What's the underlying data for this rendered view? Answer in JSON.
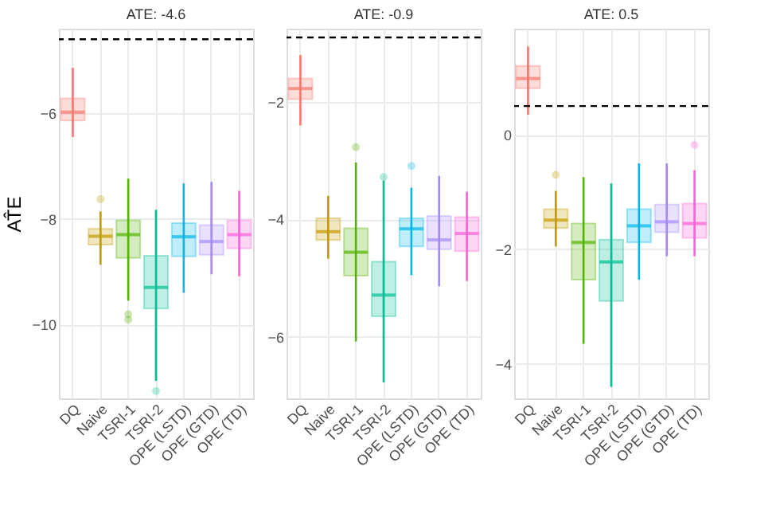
{
  "chart_data": [
    {
      "type": "box",
      "title": "ATE: -4.6",
      "ylabel": "AT̂E",
      "categories": [
        "DQ",
        "Naive",
        "TSRI-1",
        "TSRI-2",
        "OPE (LSTD)",
        "OPE (GTD)",
        "OPE (TD)"
      ],
      "colors": [
        "#f8766d",
        "#c49a00",
        "#53b400",
        "#00c094",
        "#00b6eb",
        "#a58aff",
        "#fb61d7"
      ],
      "ylim": [
        -11.4,
        -4.4
      ],
      "yticks": [
        -10,
        -8,
        -6
      ],
      "grid": true,
      "ref_lines": [
        {
          "axis": "y",
          "value": -4.6,
          "line_style": "dashed"
        }
      ],
      "boxes": [
        {
          "low": -6.45,
          "q1": -6.14,
          "median": -5.98,
          "q3": -5.72,
          "high": -5.14
        },
        {
          "low": -8.87,
          "q1": -8.49,
          "median": -8.33,
          "q3": -8.19,
          "high": -7.86,
          "outliers": [
            -7.63
          ]
        },
        {
          "low": -9.55,
          "q1": -8.74,
          "median": -8.3,
          "q3": -8.03,
          "high": -7.24,
          "outliers": [
            -9.81,
            -9.91
          ]
        },
        {
          "low": -11.07,
          "q1": -9.7,
          "median": -9.3,
          "q3": -8.7,
          "high": -7.83,
          "outliers": [
            -11.26
          ]
        },
        {
          "low": -9.4,
          "q1": -8.71,
          "median": -8.34,
          "q3": -8.08,
          "high": -7.33
        },
        {
          "low": -9.05,
          "q1": -8.68,
          "median": -8.43,
          "q3": -8.12,
          "high": -7.3
        },
        {
          "low": -9.09,
          "q1": -8.56,
          "median": -8.3,
          "q3": -8.03,
          "high": -7.47
        }
      ]
    },
    {
      "type": "box",
      "title": "ATE: -0.9",
      "categories": [
        "DQ",
        "Naive",
        "TSRI-1",
        "TSRI-2",
        "OPE (LSTD)",
        "OPE (GTD)",
        "OPE (TD)"
      ],
      "colors": [
        "#f8766d",
        "#c49a00",
        "#53b400",
        "#00c094",
        "#00b6eb",
        "#a58aff",
        "#fb61d7"
      ],
      "ylim": [
        -7.05,
        -0.75
      ],
      "yticks": [
        -6,
        -4,
        -2
      ],
      "grid": true,
      "ref_lines": [
        {
          "axis": "y",
          "value": -0.9,
          "line_style": "dashed"
        }
      ],
      "boxes": [
        {
          "low": -2.4,
          "q1": -1.95,
          "median": -1.77,
          "q3": -1.6,
          "high": -1.2
        },
        {
          "low": -4.67,
          "q1": -4.35,
          "median": -4.21,
          "q3": -3.98,
          "high": -3.6
        },
        {
          "low": -6.08,
          "q1": -4.96,
          "median": -4.56,
          "q3": -4.15,
          "high": -3.03,
          "outliers": [
            -2.77
          ]
        },
        {
          "low": -6.78,
          "q1": -5.65,
          "median": -5.29,
          "q3": -4.72,
          "high": -3.34,
          "outliers": [
            -3.28
          ]
        },
        {
          "low": -4.95,
          "q1": -4.46,
          "median": -4.16,
          "q3": -3.98,
          "high": -3.46,
          "outliers": [
            -3.09
          ]
        },
        {
          "low": -5.14,
          "q1": -4.51,
          "median": -4.35,
          "q3": -3.94,
          "high": -3.26
        },
        {
          "low": -5.05,
          "q1": -4.54,
          "median": -4.24,
          "q3": -3.96,
          "high": -3.53
        }
      ]
    },
    {
      "type": "box",
      "title": "ATE: 0.5",
      "categories": [
        "DQ",
        "Naive",
        "TSRI-1",
        "TSRI-2",
        "OPE (LSTD)",
        "OPE (GTD)",
        "OPE (TD)"
      ],
      "colors": [
        "#f8766d",
        "#c49a00",
        "#53b400",
        "#00c094",
        "#00b6eb",
        "#a58aff",
        "#fb61d7"
      ],
      "ylim": [
        -4.6,
        1.85
      ],
      "yticks": [
        -4,
        -2,
        0
      ],
      "grid": true,
      "ref_lines": [
        {
          "axis": "y",
          "value": 0.5,
          "line_style": "dashed"
        }
      ],
      "boxes": [
        {
          "low": 0.35,
          "q1": 0.81,
          "median": 0.98,
          "q3": 1.2,
          "high": 1.54
        },
        {
          "low": -1.95,
          "q1": -1.63,
          "median": -1.49,
          "q3": -1.3,
          "high": -0.98,
          "outliers": [
            -0.7
          ]
        },
        {
          "low": -3.65,
          "q1": -2.53,
          "median": -1.88,
          "q3": -1.55,
          "high": -0.74
        },
        {
          "low": -4.4,
          "q1": -2.9,
          "median": -2.22,
          "q3": -1.83,
          "high": -0.85
        },
        {
          "low": -2.53,
          "q1": -1.88,
          "median": -1.59,
          "q3": -1.3,
          "high": -0.5
        },
        {
          "low": -2.12,
          "q1": -1.7,
          "median": -1.52,
          "q3": -1.22,
          "high": -0.5
        },
        {
          "low": -2.12,
          "q1": -1.8,
          "median": -1.55,
          "q3": -1.2,
          "high": -0.62,
          "outliers": [
            -0.18
          ]
        }
      ]
    }
  ]
}
